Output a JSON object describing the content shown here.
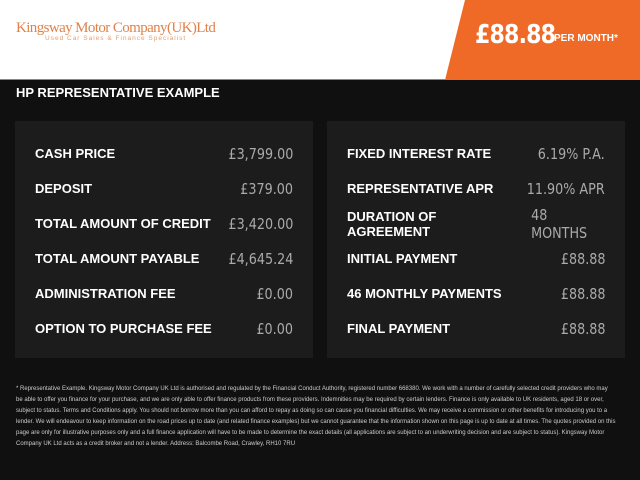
{
  "header": {
    "logo_name": "Kingsway Motor Company(UK)Ltd",
    "logo_tagline": "Used Car Sales & Finance Specialist",
    "monthly_price": "£88.88",
    "per_month": "PER MONTH*",
    "accent": "#ef6a26"
  },
  "title": "HP REPRESENTATIVE EXAMPLE",
  "left": [
    {
      "label": "CASH PRICE",
      "value": "£3,799.00"
    },
    {
      "label": "DEPOSIT",
      "value": "£379.00"
    },
    {
      "label": "TOTAL AMOUNT OF CREDIT",
      "value": "£3,420.00"
    },
    {
      "label": "TOTAL AMOUNT PAYABLE",
      "value": "£4,645.24"
    },
    {
      "label": "ADMINISTRATION FEE",
      "value": "£0.00"
    },
    {
      "label": "OPTION TO PURCHASE FEE",
      "value": "£0.00"
    }
  ],
  "right": [
    {
      "label": "FIXED INTEREST RATE",
      "value": "6.19% P.A."
    },
    {
      "label": "REPRESENTATIVE APR",
      "value": "11.90% APR"
    },
    {
      "label": "DURATION OF AGREEMENT",
      "value": "48 MONTHS"
    },
    {
      "label": "INITIAL PAYMENT",
      "value": "£88.88"
    },
    {
      "label": "46 MONTHLY PAYMENTS",
      "value": "£88.88"
    },
    {
      "label": "FINAL PAYMENT",
      "value": "£88.88"
    }
  ],
  "footer": "* Representative Example. Kingsway Motor Company UK Ltd is authorised and regulated by the Financial Conduct Authority, registered number 668380. We work with a number of carefully selected credit providers who may be able to offer you finance for your purchase, and we are only able to offer finance products from these providers. Indemnities may be required by certain lenders. Finance is only available to UK residents, aged 18 or over, subject to status. Terms and Conditions apply. You should not borrow more than you can afford to repay as doing so can cause you financial difficulties. We may receive a commission or other benefits for introducing you to a lender. We will endeavour to keep information on the road prices up to date (and related finance examples) but we cannot guarantee that the information shown on this page is up to date at all times. The quotes provided on this page are only for illustrative purposes only and a full finance application will have to be made to determine the exact details (all applications are subject to an underwriting decision and are subject to status). Kingsway Motor Company UK Ltd acts as a credit broker and not a lender. Address: Balcombe Road, Crawley, RH10 7RU"
}
